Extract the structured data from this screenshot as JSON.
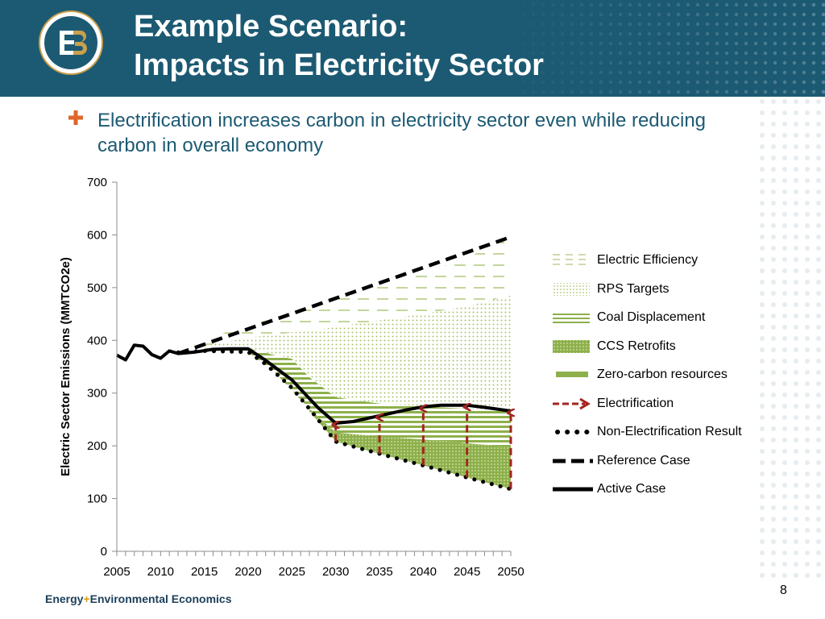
{
  "header": {
    "title_line1": "Example Scenario:",
    "title_line2": "Impacts in Electricity Sector",
    "background": "#1c5a73"
  },
  "logo": {
    "text": "E3",
    "colors": [
      "#1c5a73",
      "#c9a04b"
    ]
  },
  "bullet": {
    "text": "Electrification increases carbon in electricity sector even while reducing carbon in overall economy",
    "marker_color": "#e0662a"
  },
  "footer": {
    "brand_part1": "Energy",
    "brand_plus": "+",
    "brand_part2": "Environmental Economics",
    "page_number": "8"
  },
  "legend": [
    {
      "key": "electric_efficiency",
      "label": "Electric Efficiency",
      "icon": "dashed-hatch"
    },
    {
      "key": "rps_targets",
      "label": "RPS Targets",
      "icon": "dotted-fill"
    },
    {
      "key": "coal_displacement",
      "label": "Coal Displacement",
      "icon": "striped-fill"
    },
    {
      "key": "ccs_retrofits",
      "label": "CCS Retrofits",
      "icon": "dense-dotted-fill"
    },
    {
      "key": "zero_carbon",
      "label": "Zero-carbon resources",
      "icon": "solid-bar"
    },
    {
      "key": "electrification",
      "label": "Electrification",
      "icon": "dashed-arrow"
    },
    {
      "key": "non_electrification",
      "label": "Non-Electrification Result",
      "icon": "dotted-line"
    },
    {
      "key": "reference",
      "label": "Reference Case",
      "icon": "dashed-line"
    },
    {
      "key": "active",
      "label": "Active Case",
      "icon": "solid-line"
    }
  ],
  "chart_data": {
    "type": "area",
    "ylabel": "Electric Sector Emissions (MMTCO2e)",
    "xlabel": "",
    "ylim": [
      0,
      700
    ],
    "xlim": [
      2005,
      2050
    ],
    "yticks": [
      0,
      100,
      200,
      300,
      400,
      500,
      600,
      700
    ],
    "xticks": [
      2005,
      2010,
      2015,
      2020,
      2025,
      2030,
      2035,
      2040,
      2045,
      2050
    ],
    "grid": false,
    "legend_position": "right",
    "colors": {
      "green": "#8db04a",
      "light_green": "#c9dba4",
      "dark_red": "#a3231f",
      "line": "#000000"
    },
    "series": [
      {
        "name": "Reference Case",
        "style": "dashed",
        "x": [
          2012,
          2050
        ],
        "y": [
          375,
          596
        ]
      },
      {
        "name": "Active Case",
        "style": "solid",
        "x": [
          2005,
          2006,
          2007,
          2008,
          2009,
          2010,
          2011,
          2012,
          2014,
          2016,
          2018,
          2020,
          2022,
          2025,
          2028,
          2030,
          2032,
          2035,
          2038,
          2040,
          2042,
          2045,
          2047,
          2050
        ],
        "y": [
          372,
          363,
          391,
          389,
          373,
          366,
          380,
          375,
          378,
          383,
          384,
          384,
          362,
          325,
          272,
          243,
          246,
          257,
          268,
          274,
          277,
          277,
          273,
          266
        ]
      },
      {
        "name": "Non-Electrification Result",
        "style": "dotted",
        "x": [
          2012,
          2015,
          2020,
          2022,
          2025,
          2027,
          2030,
          2035,
          2040,
          2045,
          2050
        ],
        "y": [
          377,
          380,
          378,
          355,
          310,
          270,
          208,
          185,
          163,
          140,
          118
        ]
      },
      {
        "name": "Electric Efficiency",
        "style": "dashed-hatch",
        "x": [
          2012,
          2015,
          2020,
          2025,
          2030,
          2035,
          2040,
          2045,
          2050
        ],
        "upper": [
          375,
          403,
          428,
          452,
          477,
          502,
          527,
          557,
          596
        ],
        "lower": [
          375,
          390,
          405,
          415,
          425,
          438,
          450,
          465,
          485
        ]
      },
      {
        "name": "RPS Targets",
        "style": "dotted-fill",
        "x": [
          2015,
          2020,
          2025,
          2027,
          2030,
          2035,
          2040,
          2045,
          2050
        ],
        "upper": [
          390,
          405,
          415,
          418,
          425,
          438,
          450,
          465,
          485
        ],
        "lower": [
          385,
          385,
          365,
          330,
          292,
          280,
          275,
          270,
          267
        ]
      },
      {
        "name": "Coal Displacement",
        "style": "striped-fill",
        "x": [
          2015,
          2020,
          2023,
          2025,
          2027,
          2030,
          2035,
          2040,
          2045,
          2050
        ],
        "upper": [
          385,
          385,
          372,
          365,
          330,
          292,
          280,
          275,
          270,
          267
        ],
        "lower": [
          383,
          378,
          340,
          305,
          270,
          225,
          218,
          212,
          205,
          198
        ]
      },
      {
        "name": "CCS Retrofits",
        "style": "dense-dotted-fill",
        "x": [
          2027,
          2030,
          2035,
          2040,
          2045,
          2050
        ],
        "upper": [
          270,
          225,
          218,
          212,
          205,
          198
        ],
        "lower": [
          265,
          208,
          185,
          163,
          140,
          118
        ]
      },
      {
        "name": "Electrification",
        "style": "dashed-arrow",
        "x": [
          2030,
          2035,
          2040,
          2045,
          2050
        ],
        "from": [
          208,
          185,
          163,
          140,
          118
        ],
        "to": [
          243,
          257,
          274,
          277,
          266
        ]
      }
    ]
  }
}
